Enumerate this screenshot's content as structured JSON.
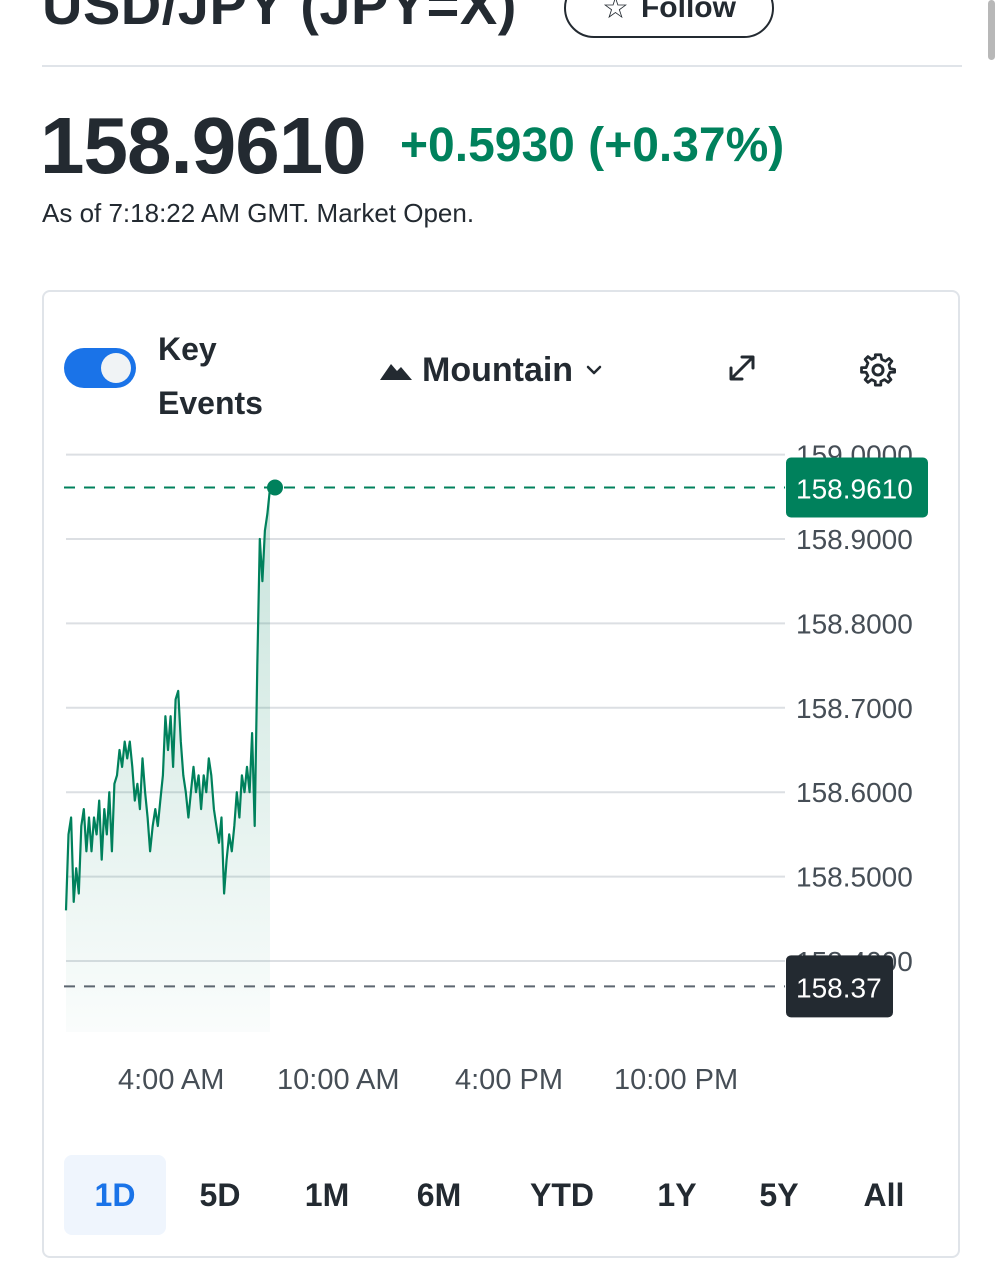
{
  "header": {
    "title": "USD/JPY (JPY=X)",
    "follow_label": "Follow"
  },
  "quote": {
    "price": "158.9610",
    "change": "+0.5930 (+0.37%)",
    "as_of": "As of 7:18:22 AM GMT. Market Open."
  },
  "controls": {
    "key_events_label": "Key Events",
    "key_events_on": true,
    "chart_type_label": "Mountain"
  },
  "colors": {
    "positive": "#00815c",
    "accent": "#1a73e8",
    "text": "#232a31",
    "prev_close_tag": "#232a31"
  },
  "icons": [
    "star-icon",
    "mountain-icon",
    "chevron-down-icon",
    "expand-icon",
    "gear-icon"
  ],
  "chart_data": {
    "type": "area",
    "y_ticks": [
      "159.0000",
      "158.9000",
      "158.8000",
      "158.7000",
      "158.6000",
      "158.5000",
      "158.4000"
    ],
    "ylim": [
      158.2,
      159.1
    ],
    "x_ticks": [
      "4:00 AM",
      "10:00 AM",
      "4:00 PM",
      "10:00 PM"
    ],
    "current_price_label": "158.9610",
    "current_price": 158.961,
    "prev_close_label": "158.37",
    "prev_close": 158.37,
    "series": [
      {
        "values": [
          158.46,
          158.55,
          158.57,
          158.47,
          158.51,
          158.48,
          158.56,
          158.58,
          158.53,
          158.57,
          158.53,
          158.57,
          158.55,
          158.59,
          158.52,
          158.58,
          158.55,
          158.6,
          158.53,
          158.61,
          158.62,
          158.65,
          158.63,
          158.66,
          158.64,
          158.66,
          158.63,
          158.59,
          158.61,
          158.58,
          158.64,
          158.6,
          158.57,
          158.53,
          158.56,
          158.58,
          158.56,
          158.59,
          158.62,
          158.69,
          158.65,
          158.69,
          158.63,
          158.71,
          158.72,
          158.66,
          158.62,
          158.6,
          158.57,
          158.6,
          158.63,
          158.6,
          158.62,
          158.58,
          158.62,
          158.6,
          158.64,
          158.62,
          158.58,
          158.56,
          158.54,
          158.57,
          158.48,
          158.52,
          158.55,
          158.53,
          158.56,
          158.6,
          158.57,
          158.62,
          158.6,
          158.63,
          158.6,
          158.67,
          158.56,
          158.75,
          158.9,
          158.85,
          158.91,
          158.93,
          158.96
        ]
      }
    ]
  },
  "ranges": {
    "active": "1D",
    "items": [
      "1D",
      "5D",
      "1M",
      "6M",
      "YTD",
      "1Y",
      "5Y",
      "All"
    ]
  }
}
